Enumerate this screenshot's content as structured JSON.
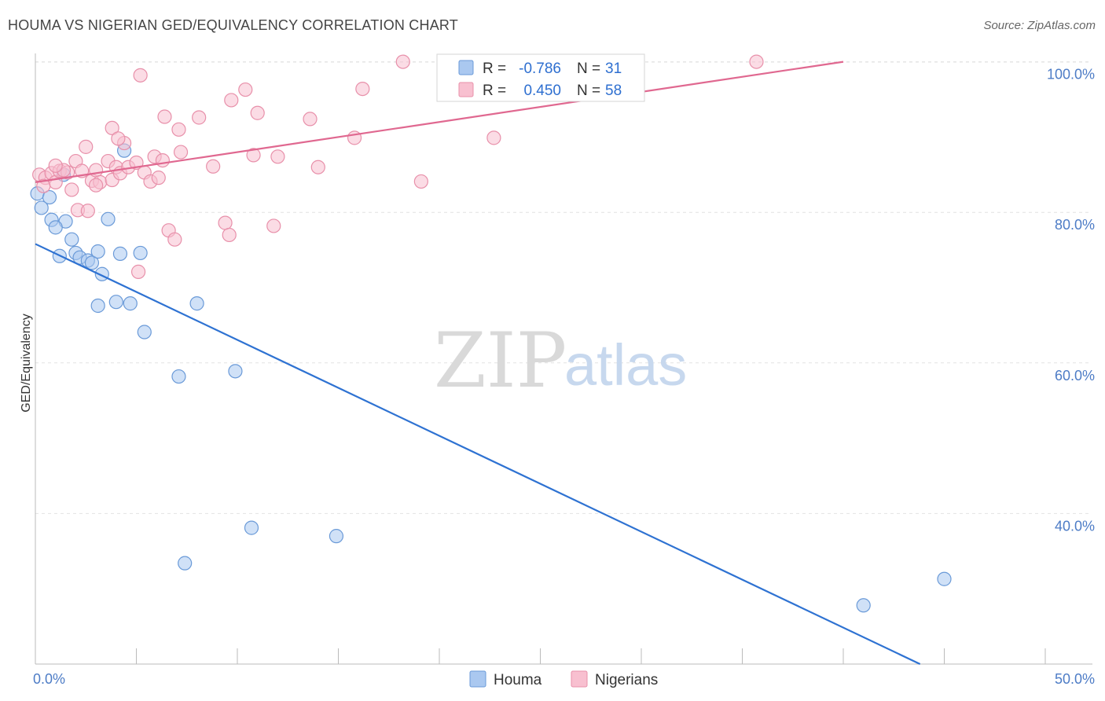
{
  "title": "HOUMA VS NIGERIAN GED/EQUIVALENCY CORRELATION CHART",
  "source": "Source: ZipAtlas.com",
  "watermark": {
    "zip": "ZIP",
    "atlas": "atlas"
  },
  "chart_data": {
    "type": "scatter",
    "ylabel": "GED/Equivalency",
    "xlabel": "",
    "xlim": [
      0,
      50
    ],
    "ylim": [
      20,
      102
    ],
    "x_tick_labels": {
      "min": "0.0%",
      "max": "50.0%"
    },
    "y_ticks": [
      {
        "value": 40,
        "label": "40.0%"
      },
      {
        "value": 60,
        "label": "60.0%"
      },
      {
        "value": 80,
        "label": "80.0%"
      },
      {
        "value": 100,
        "label": "100.0%"
      }
    ],
    "grid": true,
    "legend_position": "top-center",
    "series": [
      {
        "name": "Houma",
        "color": "#aac8f0",
        "stroke": "#6a9ad8",
        "line_color": "#2e72d2",
        "r_label": "R =",
        "r_value": "-0.786",
        "n_label": "N =",
        "n_value": "31",
        "trend": {
          "x0": 0,
          "y0": 75.8,
          "x1": 43.8,
          "y1": 20
        },
        "points": [
          [
            0.1,
            82.5
          ],
          [
            0.7,
            82.0
          ],
          [
            0.3,
            80.6
          ],
          [
            0.8,
            79.0
          ],
          [
            1.5,
            78.8
          ],
          [
            1.0,
            78.0
          ],
          [
            1.8,
            76.4
          ],
          [
            2.0,
            74.6
          ],
          [
            1.2,
            74.2
          ],
          [
            2.2,
            74.0
          ],
          [
            2.6,
            73.6
          ],
          [
            2.8,
            73.3
          ],
          [
            3.1,
            74.8
          ],
          [
            3.3,
            71.8
          ],
          [
            3.6,
            79.1
          ],
          [
            4.2,
            74.5
          ],
          [
            5.2,
            74.6
          ],
          [
            4.0,
            68.1
          ],
          [
            3.1,
            67.6
          ],
          [
            4.7,
            67.9
          ],
          [
            8.0,
            67.9
          ],
          [
            5.4,
            64.1
          ],
          [
            7.1,
            58.2
          ],
          [
            9.9,
            58.9
          ],
          [
            1.4,
            85.0
          ],
          [
            4.4,
            88.2
          ],
          [
            10.7,
            38.1
          ],
          [
            14.9,
            37.0
          ],
          [
            7.4,
            33.4
          ],
          [
            41.0,
            27.8
          ],
          [
            45.0,
            31.3
          ]
        ]
      },
      {
        "name": "Nigerians",
        "color": "#f8c0d0",
        "stroke": "#e890aa",
        "line_color": "#e06890",
        "r_label": "R =",
        "r_value": "0.450",
        "n_label": "N =",
        "n_value": "58",
        "trend": {
          "x0": 0,
          "y0": 84.0,
          "x1": 40.0,
          "y1": 100.0
        },
        "points": [
          [
            0.2,
            85.0
          ],
          [
            0.5,
            84.6
          ],
          [
            0.8,
            85.2
          ],
          [
            1.0,
            84.0
          ],
          [
            1.2,
            85.5
          ],
          [
            1.6,
            85.3
          ],
          [
            1.8,
            83.0
          ],
          [
            2.0,
            86.8
          ],
          [
            2.1,
            80.3
          ],
          [
            2.3,
            85.5
          ],
          [
            2.6,
            80.2
          ],
          [
            2.8,
            84.2
          ],
          [
            3.0,
            85.6
          ],
          [
            3.2,
            84.0
          ],
          [
            3.6,
            86.8
          ],
          [
            3.8,
            84.3
          ],
          [
            4.0,
            86.0
          ],
          [
            4.2,
            85.2
          ],
          [
            3.8,
            91.2
          ],
          [
            4.4,
            89.2
          ],
          [
            4.6,
            86.0
          ],
          [
            5.0,
            86.6
          ],
          [
            5.4,
            85.3
          ],
          [
            5.2,
            98.2
          ],
          [
            5.7,
            84.1
          ],
          [
            5.9,
            87.4
          ],
          [
            6.1,
            84.6
          ],
          [
            6.3,
            86.9
          ],
          [
            6.4,
            92.7
          ],
          [
            6.6,
            77.6
          ],
          [
            6.9,
            76.4
          ],
          [
            7.1,
            91.0
          ],
          [
            7.2,
            88.0
          ],
          [
            8.1,
            92.6
          ],
          [
            8.8,
            86.1
          ],
          [
            9.4,
            78.6
          ],
          [
            9.6,
            77.0
          ],
          [
            9.7,
            94.9
          ],
          [
            10.4,
            96.3
          ],
          [
            10.8,
            87.6
          ],
          [
            11.0,
            93.2
          ],
          [
            11.8,
            78.2
          ],
          [
            12.0,
            87.4
          ],
          [
            13.6,
            92.4
          ],
          [
            14.0,
            86.0
          ],
          [
            15.8,
            89.9
          ],
          [
            16.2,
            96.4
          ],
          [
            18.2,
            100.0
          ],
          [
            19.1,
            84.1
          ],
          [
            22.7,
            89.9
          ],
          [
            35.7,
            100.0
          ],
          [
            0.4,
            83.5
          ],
          [
            1.4,
            85.6
          ],
          [
            3.0,
            83.6
          ],
          [
            5.1,
            72.1
          ],
          [
            4.1,
            89.8
          ],
          [
            2.5,
            88.7
          ],
          [
            1.0,
            86.2
          ]
        ]
      }
    ]
  }
}
